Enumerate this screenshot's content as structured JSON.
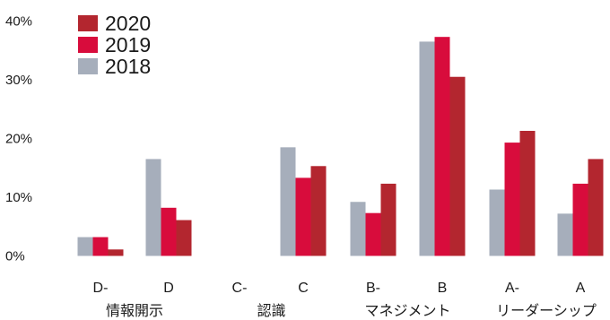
{
  "chart_data": {
    "type": "bar",
    "categories": [
      "D-",
      "D",
      "C-",
      "C",
      "B-",
      "B",
      "A-",
      "A"
    ],
    "category_groups": [
      {
        "label": "情報開示",
        "categories": [
          "D-",
          "D"
        ]
      },
      {
        "label": "認識",
        "categories": [
          "C-",
          "C"
        ]
      },
      {
        "label": "マネジメント",
        "categories": [
          "B-",
          "B"
        ]
      },
      {
        "label": "リーダーシップ",
        "categories": [
          "A-",
          "A"
        ]
      }
    ],
    "series": [
      {
        "name": "2018",
        "color": "#a6aebb",
        "values": [
          3.2,
          16.5,
          0,
          18.5,
          9.2,
          36.5,
          11.3,
          7.2
        ]
      },
      {
        "name": "2019",
        "color": "#d80c3c",
        "values": [
          3.2,
          8.2,
          0,
          13.3,
          7.3,
          37.3,
          19.3,
          12.3
        ]
      },
      {
        "name": "2020",
        "color": "#b3262f",
        "values": [
          1.1,
          6.1,
          0,
          15.3,
          12.3,
          30.5,
          21.3,
          16.5
        ]
      }
    ],
    "legend_order": [
      "2020",
      "2019",
      "2018"
    ],
    "legend_position": "top-left",
    "ylim": [
      0,
      40
    ],
    "yticks": [
      "0%",
      "10%",
      "20%",
      "30%",
      "40%"
    ],
    "grid": false,
    "title": "",
    "xlabel": "",
    "ylabel": ""
  }
}
